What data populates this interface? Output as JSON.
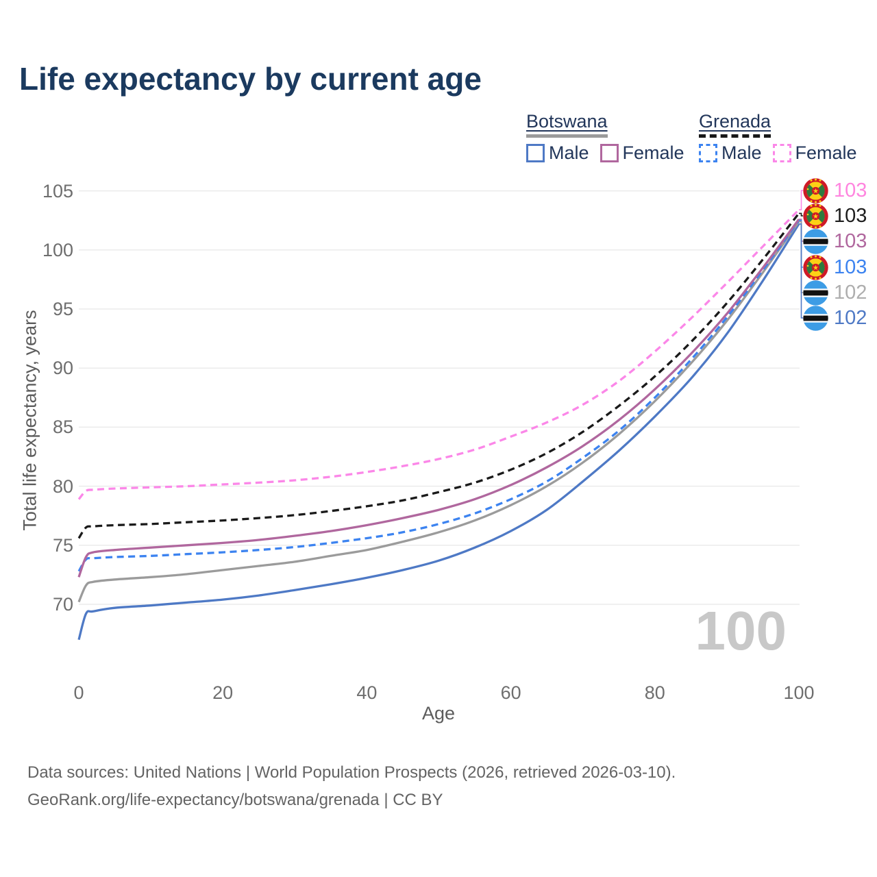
{
  "title": "Life expectancy by current age",
  "legend": {
    "groups": [
      {
        "name": "Botswana",
        "line_style": "solid",
        "swatch_color": "#9b9b9b",
        "items": [
          {
            "label": "Male",
            "color": "#4e79c5"
          },
          {
            "label": "Female",
            "color": "#b0679e"
          }
        ]
      },
      {
        "name": "Grenada",
        "line_style": "dashed",
        "swatch_color": "#191919",
        "items": [
          {
            "label": "Male",
            "color": "#3c83f0"
          },
          {
            "label": "Female",
            "color": "#fb87e8"
          }
        ]
      }
    ]
  },
  "chart_data": {
    "type": "line",
    "title": "Life expectancy by current age",
    "xlabel": "Age",
    "ylabel": "Total life expectancy, years",
    "xlim": [
      0,
      100
    ],
    "ylim": [
      66.5,
      105.5
    ],
    "xticks": [
      0,
      20,
      40,
      60,
      80,
      100
    ],
    "yticks": [
      70,
      75,
      80,
      85,
      90,
      95,
      100,
      105
    ],
    "grid": "horizontal",
    "legend_position": "top-right",
    "watermark": "100",
    "x": [
      0,
      1,
      2,
      5,
      10,
      15,
      20,
      25,
      30,
      35,
      40,
      45,
      50,
      55,
      60,
      65,
      70,
      75,
      80,
      85,
      90,
      95,
      100
    ],
    "series": [
      {
        "id": "grenada-female",
        "name": "Grenada Female",
        "country": "Grenada",
        "sex": "Female",
        "color": "#fb87e8",
        "dashed": true,
        "end_label": "103",
        "values": [
          78.9,
          79.6,
          79.7,
          79.8,
          79.9,
          80.0,
          80.15,
          80.3,
          80.5,
          80.8,
          81.2,
          81.7,
          82.3,
          83.1,
          84.2,
          85.4,
          86.9,
          88.9,
          91.4,
          94.2,
          97.2,
          100.3,
          103.4
        ]
      },
      {
        "id": "grenada-all",
        "name": "Grenada",
        "country": "Grenada",
        "sex": "Both",
        "color": "#1a1a1a",
        "dashed": true,
        "end_label": "103",
        "values": [
          75.6,
          76.5,
          76.6,
          76.7,
          76.8,
          76.95,
          77.1,
          77.3,
          77.55,
          77.9,
          78.3,
          78.8,
          79.5,
          80.3,
          81.4,
          82.8,
          84.6,
          86.8,
          89.3,
          92.2,
          95.5,
          99.2,
          103.1
        ]
      },
      {
        "id": "botswana-female",
        "name": "Botswana Female",
        "country": "Botswana",
        "sex": "Female",
        "color": "#b0679e",
        "dashed": false,
        "end_label": "103",
        "values": [
          72.3,
          74.0,
          74.4,
          74.6,
          74.8,
          75.0,
          75.2,
          75.45,
          75.8,
          76.2,
          76.7,
          77.3,
          78.0,
          78.9,
          80.1,
          81.6,
          83.4,
          85.6,
          88.2,
          91.2,
          94.6,
          98.5,
          102.6
        ]
      },
      {
        "id": "grenada-male",
        "name": "Grenada Male",
        "country": "Grenada",
        "sex": "Male",
        "color": "#3c83f0",
        "dashed": true,
        "end_label": "103",
        "values": [
          72.8,
          73.8,
          73.9,
          74.0,
          74.1,
          74.25,
          74.4,
          74.6,
          74.85,
          75.2,
          75.6,
          76.1,
          76.8,
          77.7,
          78.9,
          80.4,
          82.4,
          84.7,
          87.5,
          90.7,
          94.3,
          98.3,
          102.5
        ]
      },
      {
        "id": "botswana-all",
        "name": "Botswana",
        "country": "Botswana",
        "sex": "Both",
        "color": "#9b9b9b",
        "dashed": false,
        "end_label": "102",
        "values": [
          70.2,
          71.6,
          71.9,
          72.1,
          72.3,
          72.55,
          72.9,
          73.25,
          73.6,
          74.1,
          74.6,
          75.3,
          76.1,
          77.1,
          78.4,
          80.0,
          82.0,
          84.4,
          87.2,
          90.4,
          94.0,
          98.1,
          102.4
        ]
      },
      {
        "id": "botswana-male",
        "name": "Botswana Male",
        "country": "Botswana",
        "sex": "Male",
        "color": "#4e79c5",
        "dashed": false,
        "end_label": "102",
        "values": [
          67.0,
          69.2,
          69.4,
          69.7,
          69.9,
          70.15,
          70.4,
          70.75,
          71.2,
          71.7,
          72.25,
          72.9,
          73.7,
          74.8,
          76.2,
          78.0,
          80.4,
          83.0,
          85.9,
          89.1,
          92.9,
          97.4,
          102.2
        ]
      }
    ]
  },
  "end_labels": [
    {
      "series_id": "grenada-female",
      "value": "103",
      "flag": "grenada",
      "color": "#ff85df"
    },
    {
      "series_id": "grenada-all",
      "value": "103",
      "flag": "grenada",
      "color": "#1d1d1d"
    },
    {
      "series_id": "botswana-female",
      "value": "103",
      "flag": "botswana",
      "color": "#b0679e"
    },
    {
      "series_id": "grenada-male",
      "value": "103",
      "flag": "grenada",
      "color": "#3c83f0"
    },
    {
      "series_id": "botswana-all",
      "value": "102",
      "flag": "botswana",
      "color": "#aeaeae"
    },
    {
      "series_id": "botswana-male",
      "value": "102",
      "flag": "botswana",
      "color": "#4e79c5"
    }
  ],
  "footer": {
    "line1": "Data sources: United Nations | World Population Prospects (2026, retrieved 2026-03-10).",
    "line2": "GeoRank.org/life-expectancy/botswana/grenada | CC BY"
  }
}
